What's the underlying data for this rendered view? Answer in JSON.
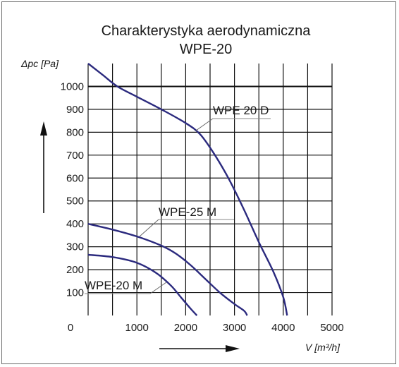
{
  "chart_data": {
    "type": "line",
    "title": "Charakterystyka aerodynamiczna",
    "subtitle": "WPE-20",
    "xlabel": "V [m³/h]",
    "ylabel": "Δpc [Pa]",
    "xlim": [
      0,
      5000
    ],
    "ylim": [
      0,
      1100
    ],
    "x_ticks": [
      0,
      1000,
      2000,
      3000,
      4000,
      5000
    ],
    "y_ticks": [
      100,
      200,
      300,
      400,
      500,
      600,
      700,
      800,
      900,
      1000
    ],
    "grid": true,
    "reference_line": 1000,
    "line_color": "#2b2a7e",
    "series": [
      {
        "name": "WPE 20 D",
        "points": [
          [
            0,
            1100
          ],
          [
            300,
            1050
          ],
          [
            600,
            1000
          ],
          [
            1000,
            955
          ],
          [
            1500,
            900
          ],
          [
            2000,
            840
          ],
          [
            2300,
            790
          ],
          [
            2600,
            700
          ],
          [
            2900,
            590
          ],
          [
            3200,
            460
          ],
          [
            3500,
            320
          ],
          [
            3800,
            190
          ],
          [
            4000,
            80
          ],
          [
            4080,
            0
          ]
        ]
      },
      {
        "name": "WPE-25 M",
        "points": [
          [
            0,
            400
          ],
          [
            500,
            375
          ],
          [
            1000,
            345
          ],
          [
            1500,
            305
          ],
          [
            1800,
            270
          ],
          [
            2100,
            220
          ],
          [
            2400,
            160
          ],
          [
            2700,
            100
          ],
          [
            3000,
            50
          ],
          [
            3200,
            20
          ],
          [
            3260,
            0
          ]
        ]
      },
      {
        "name": "WPE-20 M",
        "points": [
          [
            0,
            265
          ],
          [
            500,
            255
          ],
          [
            1000,
            230
          ],
          [
            1400,
            185
          ],
          [
            1700,
            130
          ],
          [
            1900,
            80
          ],
          [
            2100,
            30
          ],
          [
            2230,
            0
          ]
        ]
      }
    ]
  }
}
